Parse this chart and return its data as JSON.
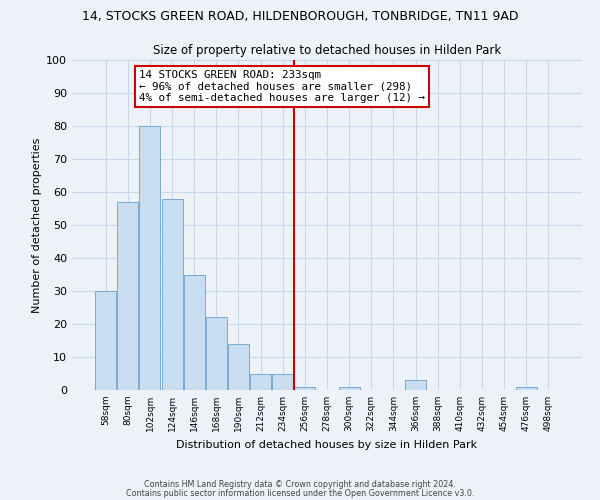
{
  "title": "14, STOCKS GREEN ROAD, HILDENBOROUGH, TONBRIDGE, TN11 9AD",
  "subtitle": "Size of property relative to detached houses in Hilden Park",
  "xlabel": "Distribution of detached houses by size in Hilden Park",
  "ylabel": "Number of detached properties",
  "bar_labels": [
    "58sqm",
    "80sqm",
    "102sqm",
    "124sqm",
    "146sqm",
    "168sqm",
    "190sqm",
    "212sqm",
    "234sqm",
    "256sqm",
    "278sqm",
    "300sqm",
    "322sqm",
    "344sqm",
    "366sqm",
    "388sqm",
    "410sqm",
    "432sqm",
    "454sqm",
    "476sqm",
    "498sqm"
  ],
  "bar_values": [
    30,
    57,
    80,
    58,
    35,
    22,
    14,
    5,
    5,
    1,
    0,
    1,
    0,
    0,
    3,
    0,
    0,
    0,
    0,
    1,
    0
  ],
  "bar_color": "#c8ddf0",
  "bar_edge_color": "#7aaad0",
  "vline_x": 8.5,
  "vline_color": "#cc0000",
  "annotation_title": "14 STOCKS GREEN ROAD: 233sqm",
  "annotation_line1": "← 96% of detached houses are smaller (298)",
  "annotation_line2": "4% of semi-detached houses are larger (12) →",
  "ylim": [
    0,
    100
  ],
  "background_color": "#edf2f9",
  "grid_color": "#c8d8ec",
  "footer1": "Contains HM Land Registry data © Crown copyright and database right 2024.",
  "footer2": "Contains public sector information licensed under the Open Government Licence v3.0."
}
